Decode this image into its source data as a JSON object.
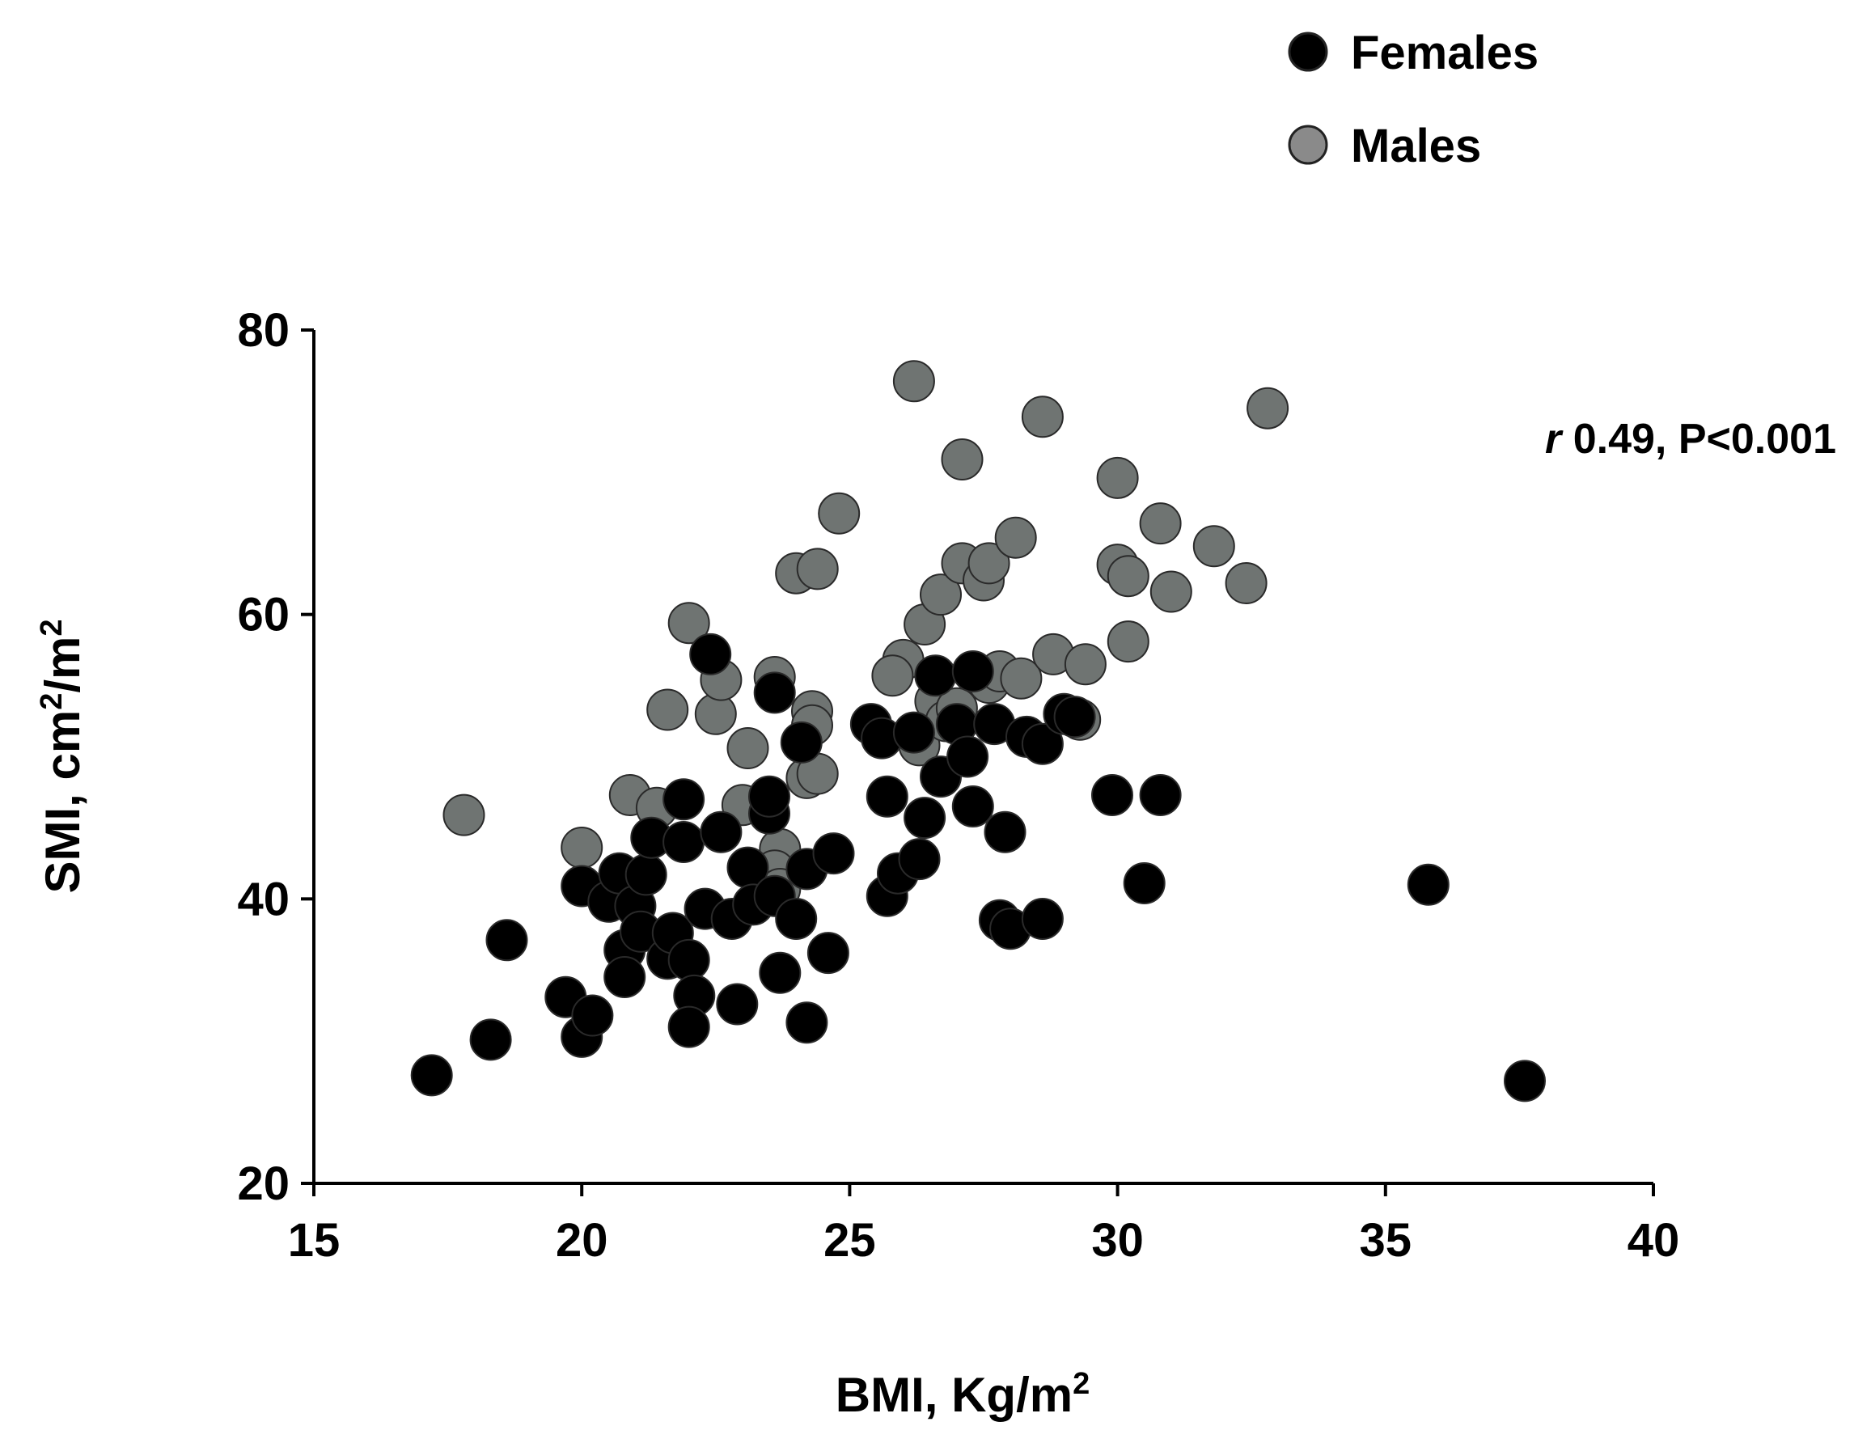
{
  "chart_data": {
    "type": "scatter",
    "title": "",
    "xlabel": "BMI, Kg/m",
    "xlabel_sup": "2",
    "ylabel": "SMI, cm",
    "ylabel_sup1": "2",
    "ylabel_mid": "/m",
    "ylabel_sup2": "2",
    "xlim": [
      15,
      40
    ],
    "ylim": [
      20,
      80
    ],
    "xticks": [
      "15",
      "20",
      "25",
      "30",
      "35",
      "40"
    ],
    "yticks": [
      "20",
      "40",
      "60",
      "80"
    ],
    "legend_position": "top-right",
    "annotation": {
      "r_label": "r",
      "text": " 0.49, P<0.001"
    },
    "series": [
      {
        "name": "Males",
        "color": "#6f7472",
        "legend_color": "#8a8a8a",
        "points": [
          [
            17.8,
            45.9
          ],
          [
            20.0,
            43.6
          ],
          [
            20.9,
            47.3
          ],
          [
            21.4,
            46.4
          ],
          [
            21.6,
            53.3
          ],
          [
            22.0,
            59.4
          ],
          [
            22.5,
            53.0
          ],
          [
            22.6,
            55.4
          ],
          [
            23.1,
            50.6
          ],
          [
            23.0,
            46.6
          ],
          [
            23.6,
            55.6
          ],
          [
            23.7,
            43.5
          ],
          [
            23.6,
            42.0
          ],
          [
            23.7,
            40.7
          ],
          [
            24.0,
            62.9
          ],
          [
            24.4,
            63.2
          ],
          [
            24.3,
            53.2
          ],
          [
            24.3,
            52.2
          ],
          [
            24.2,
            48.5
          ],
          [
            24.4,
            48.8
          ],
          [
            24.8,
            67.1
          ],
          [
            26.2,
            76.4
          ],
          [
            26.0,
            56.8
          ],
          [
            25.8,
            55.7
          ],
          [
            26.4,
            59.3
          ],
          [
            26.7,
            61.4
          ],
          [
            26.6,
            53.9
          ],
          [
            27.1,
            70.9
          ],
          [
            27.1,
            63.6
          ],
          [
            27.5,
            62.4
          ],
          [
            27.6,
            63.6
          ],
          [
            26.3,
            50.8
          ],
          [
            26.8,
            52.5
          ],
          [
            27.0,
            53.4
          ],
          [
            27.6,
            55.2
          ],
          [
            27.8,
            56.0
          ],
          [
            28.1,
            65.4
          ],
          [
            28.2,
            55.5
          ],
          [
            28.6,
            73.9
          ],
          [
            28.8,
            57.2
          ],
          [
            29.3,
            52.6
          ],
          [
            29.4,
            56.5
          ],
          [
            30.0,
            69.6
          ],
          [
            30.0,
            63.5
          ],
          [
            30.2,
            62.7
          ],
          [
            30.2,
            58.1
          ],
          [
            30.8,
            66.4
          ],
          [
            31.0,
            61.6
          ],
          [
            31.8,
            64.8
          ],
          [
            32.4,
            62.2
          ],
          [
            32.8,
            74.5
          ]
        ]
      },
      {
        "name": "Females",
        "color": "#000000",
        "legend_color": "#000000",
        "points": [
          [
            17.2,
            27.6
          ],
          [
            18.3,
            30.1
          ],
          [
            18.6,
            37.1
          ],
          [
            19.7,
            33.1
          ],
          [
            20.0,
            30.3
          ],
          [
            20.2,
            31.8
          ],
          [
            20.0,
            40.9
          ],
          [
            20.5,
            39.8
          ],
          [
            20.7,
            41.8
          ],
          [
            20.8,
            36.4
          ],
          [
            20.8,
            34.5
          ],
          [
            21.0,
            39.5
          ],
          [
            21.2,
            41.7
          ],
          [
            21.1,
            37.7
          ],
          [
            21.3,
            44.3
          ],
          [
            21.6,
            35.8
          ],
          [
            21.7,
            37.6
          ],
          [
            21.9,
            44.0
          ],
          [
            21.9,
            47.0
          ],
          [
            22.0,
            35.7
          ],
          [
            22.1,
            33.2
          ],
          [
            22.0,
            31.0
          ],
          [
            22.4,
            57.2
          ],
          [
            22.3,
            39.3
          ],
          [
            22.6,
            44.7
          ],
          [
            22.8,
            38.6
          ],
          [
            22.9,
            32.6
          ],
          [
            23.1,
            42.2
          ],
          [
            23.2,
            39.6
          ],
          [
            23.5,
            46.0
          ],
          [
            23.5,
            47.2
          ],
          [
            23.6,
            54.5
          ],
          [
            23.6,
            40.2
          ],
          [
            23.7,
            34.8
          ],
          [
            24.0,
            38.6
          ],
          [
            24.1,
            51.0
          ],
          [
            24.2,
            42.1
          ],
          [
            24.2,
            31.3
          ],
          [
            24.7,
            43.2
          ],
          [
            24.6,
            36.2
          ],
          [
            25.4,
            52.3
          ],
          [
            25.6,
            51.3
          ],
          [
            25.7,
            47.2
          ],
          [
            25.7,
            40.2
          ],
          [
            25.9,
            41.8
          ],
          [
            26.2,
            51.7
          ],
          [
            26.3,
            42.8
          ],
          [
            26.4,
            45.7
          ],
          [
            26.6,
            55.7
          ],
          [
            26.7,
            48.6
          ],
          [
            27.0,
            52.3
          ],
          [
            27.2,
            50.0
          ],
          [
            27.3,
            56.0
          ],
          [
            27.3,
            46.5
          ],
          [
            27.7,
            52.3
          ],
          [
            27.8,
            38.5
          ],
          [
            27.9,
            44.7
          ],
          [
            28.0,
            37.9
          ],
          [
            28.3,
            51.4
          ],
          [
            28.6,
            50.9
          ],
          [
            28.6,
            38.6
          ],
          [
            29.0,
            53.0
          ],
          [
            29.2,
            52.8
          ],
          [
            29.9,
            47.3
          ],
          [
            30.5,
            41.1
          ],
          [
            30.8,
            47.3
          ],
          [
            35.8,
            41.0
          ],
          [
            37.6,
            27.2
          ]
        ]
      }
    ]
  }
}
